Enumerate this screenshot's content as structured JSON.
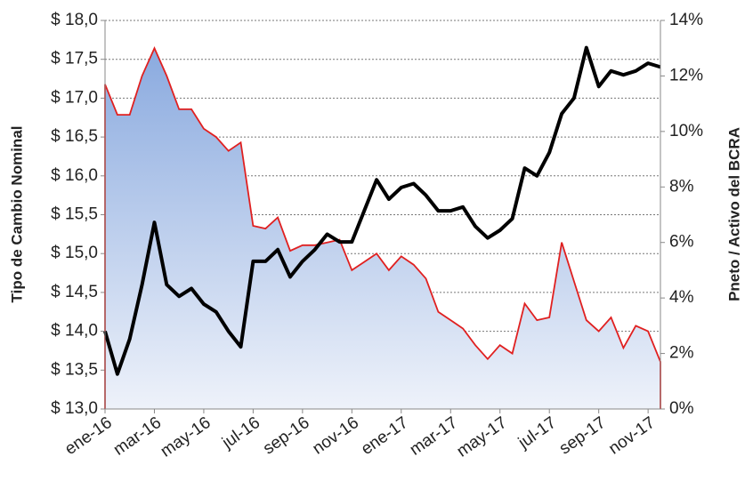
{
  "chart_data": {
    "type": "line",
    "y_label": "Tipo de Cambio Nominal",
    "y2_label": "Pneto / Activo del BCRA",
    "categories": [
      "ene-16",
      null,
      null,
      null,
      "mar-16",
      null,
      null,
      null,
      "may-16",
      null,
      null,
      null,
      "jul-16",
      null,
      null,
      null,
      "sep-16",
      null,
      null,
      null,
      "nov-16",
      null,
      null,
      null,
      "ene-17",
      null,
      null,
      null,
      "mar-17",
      null,
      null,
      null,
      "may-17",
      null,
      null,
      null,
      "jul-17",
      null,
      null,
      null,
      "sep-17",
      null,
      null,
      null,
      "nov-17",
      null
    ],
    "series": [
      {
        "name": "Pneto / Activo del BCRA",
        "type": "area",
        "axis": "y2",
        "color": "#e02020",
        "values": [
          11.7,
          10.6,
          10.6,
          12.0,
          13.0,
          12.0,
          10.8,
          10.8,
          10.1,
          9.8,
          9.3,
          9.6,
          6.6,
          6.5,
          6.9,
          5.7,
          5.9,
          5.9,
          6.0,
          6.1,
          5.0,
          5.3,
          5.6,
          5.0,
          5.5,
          5.2,
          4.7,
          3.5,
          3.2,
          2.9,
          2.3,
          1.8,
          2.3,
          2.0,
          3.8,
          3.2,
          3.3,
          6.0,
          4.6,
          3.2,
          2.8,
          3.3,
          2.2,
          3.0,
          2.8,
          1.7
        ]
      },
      {
        "name": "Tipo de Cambio Nominal",
        "type": "line",
        "color": "#000000",
        "values": [
          14.0,
          13.45,
          13.9,
          14.6,
          15.4,
          14.6,
          14.45,
          14.55,
          14.35,
          14.25,
          14.0,
          13.8,
          14.9,
          14.9,
          15.05,
          14.7,
          14.9,
          15.05,
          15.25,
          15.15,
          15.15,
          15.55,
          15.95,
          15.7,
          15.85,
          15.9,
          15.75,
          15.55,
          15.55,
          15.6,
          15.35,
          15.2,
          15.3,
          15.45,
          16.1,
          16.0,
          16.3,
          16.8,
          17.0,
          17.65,
          17.15,
          17.35,
          17.3,
          17.35,
          17.45,
          17.4
        ]
      }
    ],
    "ylim": [
      13,
      18
    ],
    "yticks": [
      {
        "value": 13,
        "label": "$ 13,0"
      },
      {
        "value": 13.5,
        "label": "$ 13,5"
      },
      {
        "value": 14,
        "label": "$ 14,0"
      },
      {
        "value": 14.5,
        "label": "$ 14,5"
      },
      {
        "value": 15,
        "label": "$ 15,0"
      },
      {
        "value": 15.5,
        "label": "$ 15,5"
      },
      {
        "value": 16,
        "label": "$ 16,0"
      },
      {
        "value": 16.5,
        "label": "$ 16,5"
      },
      {
        "value": 17,
        "label": "$ 17,0"
      },
      {
        "value": 17.5,
        "label": "$ 17,5"
      },
      {
        "value": 18,
        "label": "$ 18,0"
      }
    ],
    "y2lim": [
      0,
      14
    ],
    "y2ticks": [
      {
        "value": 0,
        "label": "0%"
      },
      {
        "value": 2,
        "label": "2%"
      },
      {
        "value": 4,
        "label": "4%"
      },
      {
        "value": 6,
        "label": "6%"
      },
      {
        "value": 8,
        "label": "8%"
      },
      {
        "value": 10,
        "label": "10%"
      },
      {
        "value": 12,
        "label": "12%"
      },
      {
        "value": 14,
        "label": "14%"
      }
    ],
    "grid": true
  }
}
